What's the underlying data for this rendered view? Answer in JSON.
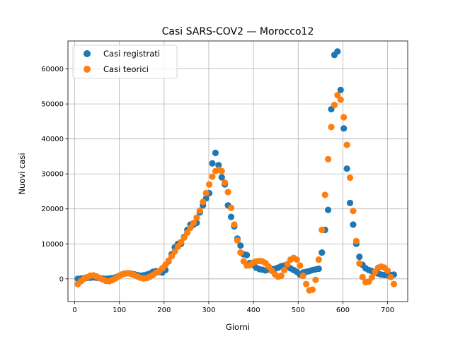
{
  "chart_data": {
    "type": "scatter",
    "title": "Casi SARS-COV2 — Morocco12",
    "xlabel": "Giorni",
    "ylabel": "Nuovi casi",
    "xlim": [
      -15,
      745
    ],
    "ylim": [
      -6500,
      68000
    ],
    "xticks": [
      0,
      100,
      200,
      300,
      400,
      500,
      600,
      700
    ],
    "yticks": [
      0,
      10000,
      20000,
      30000,
      40000,
      50000,
      60000
    ],
    "grid": true,
    "legend_position": "top-left",
    "series": [
      {
        "name": "Casi registrati",
        "color": "#1f77b4",
        "points": [
          [
            7,
            0
          ],
          [
            14,
            100
          ],
          [
            21,
            200
          ],
          [
            28,
            300
          ],
          [
            35,
            300
          ],
          [
            42,
            400
          ],
          [
            49,
            300
          ],
          [
            56,
            200
          ],
          [
            63,
            100
          ],
          [
            70,
            0
          ],
          [
            77,
            100
          ],
          [
            84,
            200
          ],
          [
            91,
            400
          ],
          [
            98,
            800
          ],
          [
            105,
            1200
          ],
          [
            112,
            1500
          ],
          [
            119,
            1600
          ],
          [
            126,
            1500
          ],
          [
            133,
            1300
          ],
          [
            140,
            1100
          ],
          [
            147,
            900
          ],
          [
            154,
            1000
          ],
          [
            161,
            1200
          ],
          [
            168,
            1500
          ],
          [
            175,
            2000
          ],
          [
            182,
            2200
          ],
          [
            189,
            2000
          ],
          [
            196,
            1800
          ],
          [
            203,
            2500
          ],
          [
            210,
            5000
          ],
          [
            217,
            7000
          ],
          [
            224,
            9000
          ],
          [
            231,
            10000
          ],
          [
            238,
            10000
          ],
          [
            245,
            12000
          ],
          [
            252,
            14000
          ],
          [
            259,
            15500
          ],
          [
            266,
            15500
          ],
          [
            273,
            16000
          ],
          [
            280,
            19000
          ],
          [
            287,
            21000
          ],
          [
            294,
            23000
          ],
          [
            301,
            24500
          ],
          [
            308,
            33000
          ],
          [
            315,
            36000
          ],
          [
            322,
            32500
          ],
          [
            329,
            29000
          ],
          [
            336,
            27000
          ],
          [
            343,
            21000
          ],
          [
            350,
            17700
          ],
          [
            357,
            15000
          ],
          [
            364,
            11500
          ],
          [
            371,
            9500
          ],
          [
            378,
            7000
          ],
          [
            385,
            6800
          ],
          [
            392,
            4500
          ],
          [
            399,
            4000
          ],
          [
            406,
            3200
          ],
          [
            413,
            2800
          ],
          [
            420,
            2600
          ],
          [
            427,
            2400
          ],
          [
            434,
            2700
          ],
          [
            441,
            2800
          ],
          [
            448,
            2900
          ],
          [
            455,
            3200
          ],
          [
            462,
            3600
          ],
          [
            469,
            3800
          ],
          [
            476,
            3400
          ],
          [
            483,
            3000
          ],
          [
            490,
            2500
          ],
          [
            497,
            2000
          ],
          [
            504,
            1200
          ],
          [
            511,
            1800
          ],
          [
            518,
            2000
          ],
          [
            525,
            2200
          ],
          [
            532,
            2500
          ],
          [
            539,
            2700
          ],
          [
            546,
            2900
          ],
          [
            553,
            7500
          ],
          [
            560,
            14000
          ],
          [
            567,
            19700
          ],
          [
            574,
            48500
          ],
          [
            581,
            64000
          ],
          [
            588,
            65000
          ],
          [
            595,
            54000
          ],
          [
            602,
            43000
          ],
          [
            609,
            31500
          ],
          [
            616,
            21700
          ],
          [
            623,
            15500
          ],
          [
            630,
            10000
          ],
          [
            637,
            6300
          ],
          [
            644,
            4000
          ],
          [
            651,
            3000
          ],
          [
            658,
            2500
          ],
          [
            665,
            2200
          ],
          [
            672,
            1800
          ],
          [
            679,
            1500
          ],
          [
            686,
            1200
          ],
          [
            693,
            1100
          ],
          [
            700,
            1000
          ],
          [
            707,
            1100
          ],
          [
            714,
            1200
          ]
        ]
      },
      {
        "name": "Casi teorici",
        "color": "#ff7f0e",
        "points": [
          [
            7,
            -1500
          ],
          [
            14,
            -700
          ],
          [
            21,
            0
          ],
          [
            28,
            500
          ],
          [
            35,
            900
          ],
          [
            42,
            1000
          ],
          [
            49,
            700
          ],
          [
            56,
            200
          ],
          [
            63,
            -200
          ],
          [
            70,
            -600
          ],
          [
            77,
            -700
          ],
          [
            84,
            -400
          ],
          [
            91,
            100
          ],
          [
            98,
            700
          ],
          [
            105,
            1200
          ],
          [
            112,
            1500
          ],
          [
            119,
            1600
          ],
          [
            126,
            1400
          ],
          [
            133,
            1100
          ],
          [
            140,
            700
          ],
          [
            147,
            300
          ],
          [
            154,
            100
          ],
          [
            161,
            200
          ],
          [
            168,
            600
          ],
          [
            175,
            1100
          ],
          [
            182,
            1700
          ],
          [
            189,
            2200
          ],
          [
            196,
            3000
          ],
          [
            203,
            4000
          ],
          [
            210,
            5200
          ],
          [
            217,
            6500
          ],
          [
            224,
            7800
          ],
          [
            231,
            9200
          ],
          [
            238,
            10500
          ],
          [
            245,
            11800
          ],
          [
            252,
            13200
          ],
          [
            259,
            14600
          ],
          [
            266,
            16000
          ],
          [
            273,
            17500
          ],
          [
            280,
            19500
          ],
          [
            287,
            22000
          ],
          [
            294,
            24500
          ],
          [
            301,
            27000
          ],
          [
            308,
            29200
          ],
          [
            315,
            30800
          ],
          [
            322,
            31200
          ],
          [
            329,
            30800
          ],
          [
            336,
            27500
          ],
          [
            343,
            24800
          ],
          [
            350,
            20300
          ],
          [
            357,
            15500
          ],
          [
            364,
            11000
          ],
          [
            371,
            7500
          ],
          [
            378,
            5000
          ],
          [
            385,
            3800
          ],
          [
            392,
            3900
          ],
          [
            399,
            4600
          ],
          [
            406,
            5000
          ],
          [
            413,
            5100
          ],
          [
            420,
            5000
          ],
          [
            427,
            4500
          ],
          [
            434,
            3500
          ],
          [
            441,
            2300
          ],
          [
            448,
            1300
          ],
          [
            455,
            600
          ],
          [
            462,
            900
          ],
          [
            469,
            2500
          ],
          [
            476,
            4200
          ],
          [
            483,
            5500
          ],
          [
            490,
            6000
          ],
          [
            497,
            5500
          ],
          [
            504,
            3800
          ],
          [
            511,
            900
          ],
          [
            518,
            -1500
          ],
          [
            525,
            -3300
          ],
          [
            532,
            -3100
          ],
          [
            539,
            -300
          ],
          [
            546,
            5500
          ],
          [
            553,
            14000
          ],
          [
            560,
            24000
          ],
          [
            567,
            34200
          ],
          [
            574,
            43400
          ],
          [
            581,
            49700
          ],
          [
            588,
            52500
          ],
          [
            595,
            51200
          ],
          [
            602,
            46200
          ],
          [
            609,
            38300
          ],
          [
            616,
            28900
          ],
          [
            623,
            19400
          ],
          [
            630,
            10800
          ],
          [
            637,
            4400
          ],
          [
            644,
            500
          ],
          [
            651,
            -1000
          ],
          [
            658,
            -800
          ],
          [
            665,
            400
          ],
          [
            672,
            2000
          ],
          [
            679,
            3200
          ],
          [
            686,
            3500
          ],
          [
            693,
            3200
          ],
          [
            700,
            2300
          ],
          [
            707,
            500
          ],
          [
            714,
            -1500
          ]
        ]
      }
    ]
  }
}
